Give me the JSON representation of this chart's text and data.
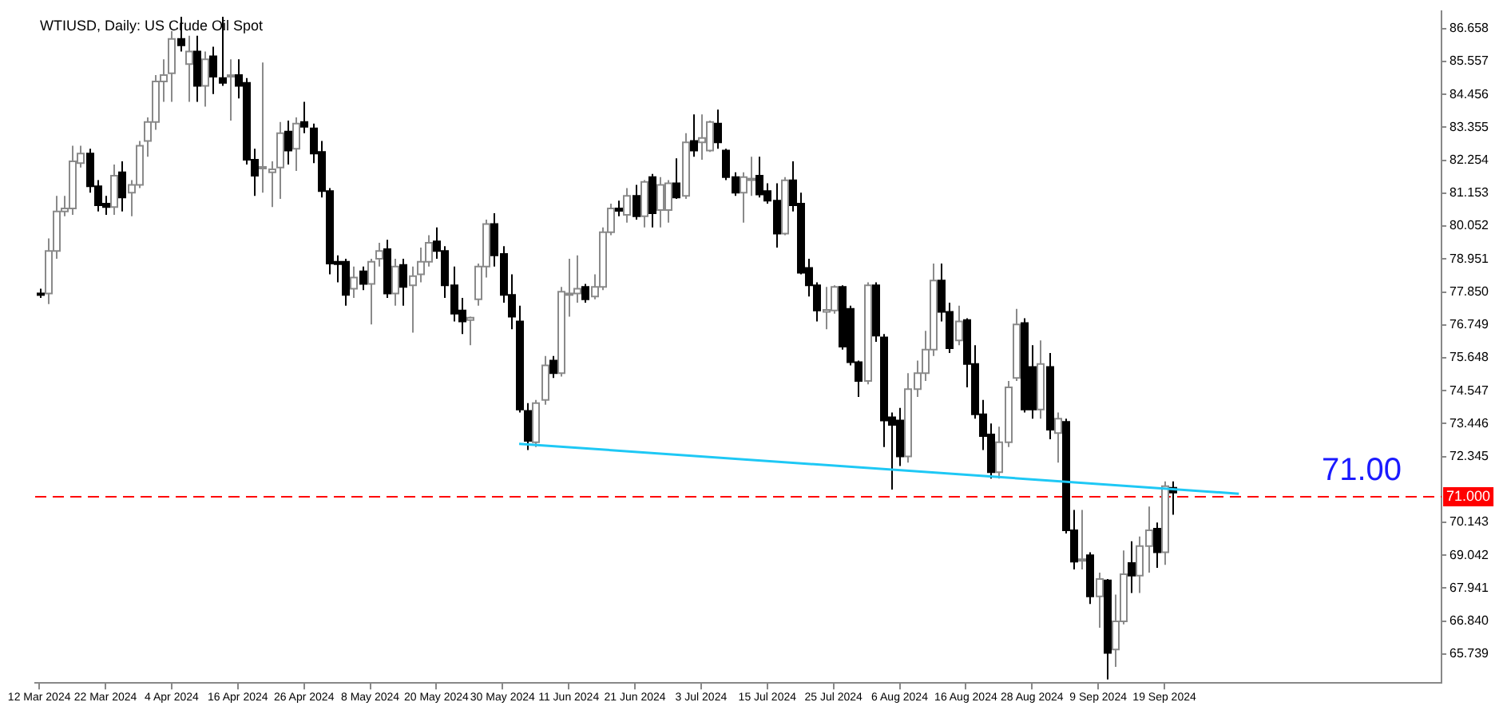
{
  "chart_data": {
    "type": "candlestick",
    "title": "WTIUSD, Daily: US Crude Oil Spot",
    "categories": [
      "12 Mar 2024",
      null,
      null,
      null,
      null,
      null,
      null,
      null,
      "22 Mar 2024",
      null,
      null,
      null,
      null,
      null,
      null,
      null,
      "4 Apr 2024",
      null,
      null,
      null,
      null,
      null,
      null,
      null,
      "16 Apr 2024",
      null,
      null,
      null,
      null,
      null,
      null,
      null,
      "26 Apr 2024",
      null,
      null,
      null,
      null,
      null,
      null,
      null,
      "8 May 2024",
      null,
      null,
      null,
      null,
      null,
      null,
      null,
      "20 May 2024",
      null,
      null,
      null,
      null,
      null,
      null,
      null,
      "30 May 2024",
      null,
      null,
      null,
      null,
      null,
      null,
      null,
      "11 Jun 2024",
      null,
      null,
      null,
      null,
      null,
      null,
      null,
      "21 Jun 2024",
      null,
      null,
      null,
      null,
      null,
      null,
      null,
      "3 Jul 2024",
      null,
      null,
      null,
      null,
      null,
      null,
      null,
      "15 Jul 2024",
      null,
      null,
      null,
      null,
      null,
      null,
      null,
      "25 Jul 2024",
      null,
      null,
      null,
      null,
      null,
      null,
      null,
      "6 Aug 2024",
      null,
      null,
      null,
      null,
      null,
      null,
      null,
      "16 Aug 2024",
      null,
      null,
      null,
      null,
      null,
      null,
      null,
      "28 Aug 2024",
      null,
      null,
      null,
      null,
      null,
      null,
      null,
      "9 Sep 2024",
      null,
      null,
      null,
      null,
      null,
      null,
      null,
      "19 Sep 2024",
      null,
      null,
      null,
      null,
      null,
      null,
      null,
      null,
      null,
      null,
      null,
      null,
      null,
      null,
      null,
      null,
      null,
      null,
      null,
      null,
      null,
      null,
      null,
      null,
      null,
      null,
      null,
      null,
      null,
      null,
      null,
      null,
      null
    ],
    "ohlc": [
      [
        77.8,
        77.96,
        77.65,
        77.78
      ],
      [
        77.8,
        79.64,
        77.44,
        79.22
      ],
      [
        79.22,
        81.06,
        78.96,
        80.54
      ],
      [
        80.54,
        81.06,
        80.38,
        80.64
      ],
      [
        80.64,
        82.74,
        80.43,
        82.22
      ],
      [
        82.16,
        82.74,
        82.01,
        82.48
      ],
      [
        82.48,
        82.64,
        81.17,
        81.38
      ],
      [
        81.38,
        81.59,
        80.54,
        80.75
      ],
      [
        80.8,
        81.06,
        80.43,
        80.69
      ],
      [
        80.69,
        82.11,
        80.43,
        81.74
      ],
      [
        81.85,
        82.22,
        80.54,
        81.01
      ],
      [
        81.17,
        81.59,
        80.38,
        81.43
      ],
      [
        81.43,
        82.9,
        81.32,
        82.74
      ],
      [
        82.9,
        83.69,
        82.37,
        83.53
      ],
      [
        83.53,
        85.1,
        83.27,
        84.89
      ],
      [
        84.89,
        85.63,
        84.21,
        85.1
      ],
      [
        85.16,
        86.57,
        84.21,
        86.31
      ],
      [
        86.31,
        87.05,
        85.89,
        86.1
      ],
      [
        85.47,
        86.42,
        84.21,
        85.89
      ],
      [
        85.89,
        86.42,
        84.21,
        84.74
      ],
      [
        84.74,
        85.89,
        84.05,
        85.63
      ],
      [
        85.73,
        86.05,
        84.47,
        85.05
      ],
      [
        85.0,
        87.05,
        84.74,
        84.84
      ],
      [
        85.05,
        85.63,
        83.58,
        85.1
      ],
      [
        85.1,
        85.63,
        84.32,
        84.74
      ],
      [
        84.84,
        85.0,
        82.11,
        82.27
      ],
      [
        82.27,
        82.64,
        81.06,
        81.74
      ],
      [
        82.01,
        85.52,
        81.17,
        82.03
      ],
      [
        81.85,
        82.22,
        80.69,
        81.95
      ],
      [
        82.01,
        83.53,
        80.96,
        83.16
      ],
      [
        83.21,
        83.58,
        82.11,
        82.58
      ],
      [
        82.64,
        83.69,
        81.9,
        83.48
      ],
      [
        83.53,
        84.21,
        83.16,
        83.37
      ],
      [
        83.32,
        83.48,
        82.16,
        82.48
      ],
      [
        82.53,
        82.9,
        81.01,
        81.22
      ],
      [
        81.22,
        81.32,
        78.44,
        78.8
      ],
      [
        78.86,
        79.07,
        78.17,
        78.78
      ],
      [
        78.86,
        78.96,
        77.39,
        77.75
      ],
      [
        77.96,
        78.7,
        77.65,
        78.33
      ],
      [
        78.54,
        78.7,
        77.91,
        78.12
      ],
      [
        78.12,
        78.96,
        76.76,
        78.86
      ],
      [
        78.96,
        79.49,
        78.7,
        79.22
      ],
      [
        79.28,
        79.59,
        77.65,
        77.8
      ],
      [
        77.8,
        78.96,
        77.39,
        78.7
      ],
      [
        78.75,
        78.96,
        77.39,
        78.02
      ],
      [
        78.07,
        78.7,
        76.49,
        78.38
      ],
      [
        78.44,
        79.33,
        78.17,
        78.86
      ],
      [
        78.86,
        79.75,
        78.7,
        79.49
      ],
      [
        79.54,
        80.01,
        78.96,
        79.22
      ],
      [
        79.22,
        79.38,
        77.65,
        78.07
      ],
      [
        78.07,
        78.7,
        76.86,
        77.12
      ],
      [
        77.23,
        77.65,
        76.44,
        76.86
      ],
      [
        76.91,
        77.02,
        76.07,
        76.99
      ],
      [
        77.6,
        78.8,
        77.39,
        78.7
      ],
      [
        78.7,
        80.27,
        78.33,
        80.12
      ],
      [
        80.12,
        80.48,
        78.7,
        79.07
      ],
      [
        79.12,
        79.38,
        77.49,
        77.75
      ],
      [
        77.75,
        78.44,
        76.6,
        77.02
      ],
      [
        76.86,
        77.39,
        73.82,
        73.92
      ],
      [
        73.87,
        74.13,
        72.56,
        72.87
      ],
      [
        72.82,
        74.24,
        72.66,
        74.13
      ],
      [
        74.24,
        75.71,
        74.08,
        75.39
      ],
      [
        75.55,
        75.71,
        74.97,
        75.13
      ],
      [
        75.13,
        78.02,
        75.02,
        77.86
      ],
      [
        77.75,
        78.96,
        77.02,
        77.8
      ],
      [
        77.8,
        79.07,
        77.49,
        77.96
      ],
      [
        78.02,
        78.12,
        77.49,
        77.6
      ],
      [
        77.7,
        78.44,
        77.6,
        78.02
      ],
      [
        78.02,
        80.01,
        77.91,
        79.85
      ],
      [
        79.85,
        80.8,
        79.75,
        80.64
      ],
      [
        80.64,
        80.9,
        80.38,
        80.56
      ],
      [
        80.43,
        81.32,
        80.17,
        81.06
      ],
      [
        81.06,
        81.43,
        80.27,
        80.38
      ],
      [
        80.38,
        81.59,
        80.01,
        81.53
      ],
      [
        81.69,
        81.8,
        80.01,
        80.48
      ],
      [
        80.59,
        81.69,
        80.01,
        81.43
      ],
      [
        80.59,
        81.59,
        80.17,
        81.48
      ],
      [
        81.48,
        82.32,
        80.96,
        81.01
      ],
      [
        81.06,
        83.16,
        80.96,
        82.85
      ],
      [
        82.9,
        83.79,
        82.37,
        82.58
      ],
      [
        82.85,
        83.79,
        82.27,
        83.0
      ],
      [
        82.58,
        83.58,
        82.53,
        83.53
      ],
      [
        83.48,
        83.95,
        82.64,
        82.85
      ],
      [
        82.58,
        82.64,
        81.59,
        81.69
      ],
      [
        81.69,
        81.85,
        81.06,
        81.17
      ],
      [
        81.17,
        81.85,
        80.17,
        81.69
      ],
      [
        81.59,
        82.37,
        81.06,
        81.64
      ],
      [
        81.74,
        82.37,
        81.01,
        81.11
      ],
      [
        81.22,
        81.48,
        80.8,
        80.9
      ],
      [
        80.9,
        81.48,
        79.33,
        79.8
      ],
      [
        79.8,
        81.69,
        79.75,
        81.58
      ],
      [
        81.58,
        82.22,
        80.54,
        80.75
      ],
      [
        80.8,
        81.17,
        78.44,
        78.49
      ],
      [
        78.65,
        78.96,
        77.7,
        78.07
      ],
      [
        78.07,
        78.17,
        76.86,
        77.23
      ],
      [
        77.18,
        78.02,
        76.6,
        77.25
      ],
      [
        77.23,
        78.07,
        77.12,
        78.02
      ],
      [
        78.02,
        78.07,
        75.92,
        76.02
      ],
      [
        77.28,
        77.39,
        75.39,
        75.5
      ],
      [
        75.5,
        75.55,
        74.34,
        74.87
      ],
      [
        74.87,
        78.17,
        74.76,
        78.07
      ],
      [
        78.07,
        78.17,
        76.18,
        76.39
      ],
      [
        76.33,
        76.44,
        72.66,
        73.55
      ],
      [
        73.66,
        73.82,
        71.24,
        73.4
      ],
      [
        73.55,
        73.97,
        72.03,
        72.35
      ],
      [
        72.35,
        75.13,
        72.14,
        74.6
      ],
      [
        74.6,
        75.55,
        74.34,
        75.13
      ],
      [
        75.13,
        76.55,
        74.87,
        75.92
      ],
      [
        75.92,
        78.8,
        75.71,
        78.23
      ],
      [
        78.23,
        78.8,
        76.86,
        77.18
      ],
      [
        77.18,
        77.49,
        75.81,
        75.97
      ],
      [
        76.23,
        77.39,
        76.07,
        76.86
      ],
      [
        76.91,
        76.97,
        74.66,
        75.44
      ],
      [
        75.44,
        76.07,
        73.61,
        73.76
      ],
      [
        73.76,
        74.24,
        72.56,
        73.03
      ],
      [
        73.08,
        73.45,
        71.61,
        71.82
      ],
      [
        71.82,
        73.34,
        71.61,
        72.82
      ],
      [
        72.82,
        74.87,
        72.66,
        74.66
      ],
      [
        74.97,
        77.28,
        74.87,
        76.76
      ],
      [
        76.81,
        76.97,
        73.82,
        73.92
      ],
      [
        75.34,
        76.07,
        73.61,
        73.92
      ],
      [
        73.92,
        76.23,
        73.61,
        75.44
      ],
      [
        75.34,
        75.81,
        72.92,
        73.24
      ],
      [
        73.13,
        73.82,
        72.14,
        73.61
      ],
      [
        73.5,
        73.61,
        69.77,
        69.88
      ],
      [
        69.88,
        70.56,
        68.57,
        68.83
      ],
      [
        68.88,
        70.56,
        68.57,
        68.91
      ],
      [
        69.04,
        69.14,
        67.41,
        67.67
      ],
      [
        67.67,
        68.46,
        66.62,
        68.25
      ],
      [
        68.2,
        68.25,
        64.89,
        65.78
      ],
      [
        65.89,
        67.73,
        65.31,
        66.83
      ],
      [
        66.83,
        69.2,
        66.73,
        68.41
      ],
      [
        68.78,
        69.51,
        67.78,
        68.36
      ],
      [
        68.36,
        69.67,
        67.78,
        69.35
      ],
      [
        69.35,
        70.67,
        68.46,
        69.88
      ],
      [
        69.93,
        70.14,
        68.62,
        69.14
      ],
      [
        69.14,
        71.51,
        68.72,
        71.35
      ],
      [
        71.3,
        71.51,
        70.4,
        71.14
      ],
      null,
      null,
      null,
      null,
      null,
      null,
      null,
      null,
      null,
      null,
      null,
      null,
      null,
      null,
      null,
      null,
      null,
      null,
      null,
      null,
      null,
      null,
      null,
      null,
      null,
      null,
      null,
      null,
      null,
      null,
      null,
      null
    ],
    "series": [
      {
        "type": "line",
        "color": "#1ec8f5",
        "values": [
          null,
          null,
          null,
          null,
          null,
          null,
          null,
          null,
          null,
          null,
          null,
          null,
          null,
          null,
          null,
          null,
          null,
          null,
          null,
          null,
          null,
          null,
          null,
          null,
          null,
          null,
          null,
          null,
          null,
          null,
          null,
          null,
          null,
          null,
          null,
          null,
          null,
          null,
          null,
          null,
          null,
          null,
          null,
          null,
          null,
          null,
          null,
          null,
          null,
          null,
          null,
          null,
          null,
          null,
          null,
          null,
          null,
          null,
          72.77,
          null,
          null,
          null,
          null,
          null,
          null,
          null,
          null,
          null,
          null,
          null,
          null,
          null,
          null,
          null,
          null,
          null,
          null,
          null,
          null,
          null,
          null,
          null,
          null,
          null,
          null,
          null,
          null,
          null,
          null,
          null,
          null,
          null,
          null,
          null,
          null,
          null,
          null,
          null,
          null,
          null,
          null,
          null,
          null,
          null,
          null,
          null,
          null,
          null,
          null,
          null,
          null,
          null,
          null,
          null,
          null,
          null,
          null,
          null,
          null,
          null,
          null,
          null,
          null,
          null,
          null,
          null,
          null,
          null,
          null,
          null,
          null,
          null,
          null,
          null,
          null,
          null,
          null,
          null,
          null,
          null,
          null,
          null,
          null,
          null,
          null,
          71.1,
          null,
          null,
          null,
          null,
          null,
          null,
          null,
          null,
          null,
          null,
          null,
          null,
          null,
          null,
          null,
          null,
          null,
          null,
          null,
          null,
          null,
          null,
          null,
          null
        ]
      }
    ],
    "ylim": [
      64.77,
      87.25
    ],
    "yticks": [
      86.658,
      85.557,
      84.456,
      83.355,
      82.254,
      81.153,
      80.052,
      78.951,
      {
        "value": 77.85,
        "label": "77.850"
      },
      76.749,
      75.648,
      74.547,
      73.446,
      72.345,
      70.143,
      69.042,
      67.941,
      {
        "value": 66.84,
        "label": "66.840"
      },
      65.739
    ],
    "ref_lines": [
      {
        "axis": "y",
        "value": 71.0,
        "label": "71.000",
        "color": "#ff0000",
        "line_style": "dashed"
      }
    ],
    "annotations": [
      {
        "text": "71.00",
        "y": 71.0
      }
    ]
  }
}
